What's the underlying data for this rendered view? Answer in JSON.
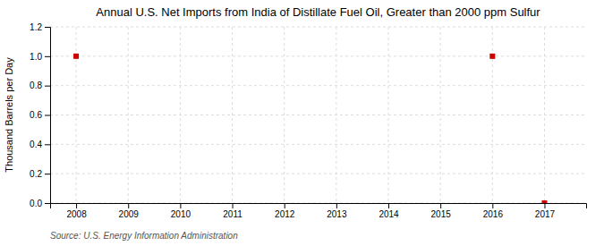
{
  "chart_data": {
    "type": "scatter",
    "title": "Annual U.S. Net Imports from India of Distillate Fuel Oil, Greater than 2000 ppm Sulfur",
    "y_label": "Thousand Barrels per Day",
    "source": "Source: U.S. Energy Information Administration",
    "x": [
      2008,
      2016,
      2017
    ],
    "values": [
      1.0,
      1.0,
      0.0
    ],
    "color": "#cc0000",
    "marker": "square",
    "xlim": [
      2007.5,
      2017.8
    ],
    "ylim": [
      0.0,
      1.2
    ],
    "xticks": [
      2008,
      2009,
      2010,
      2011,
      2012,
      2013,
      2014,
      2015,
      2016,
      2017
    ],
    "yticks": [
      {
        "value": 0.0,
        "label": "0.0"
      },
      0.2,
      0.4,
      0.6,
      0.8,
      {
        "value": 1.0,
        "label": "1.0"
      },
      1.2
    ],
    "grid": true
  }
}
